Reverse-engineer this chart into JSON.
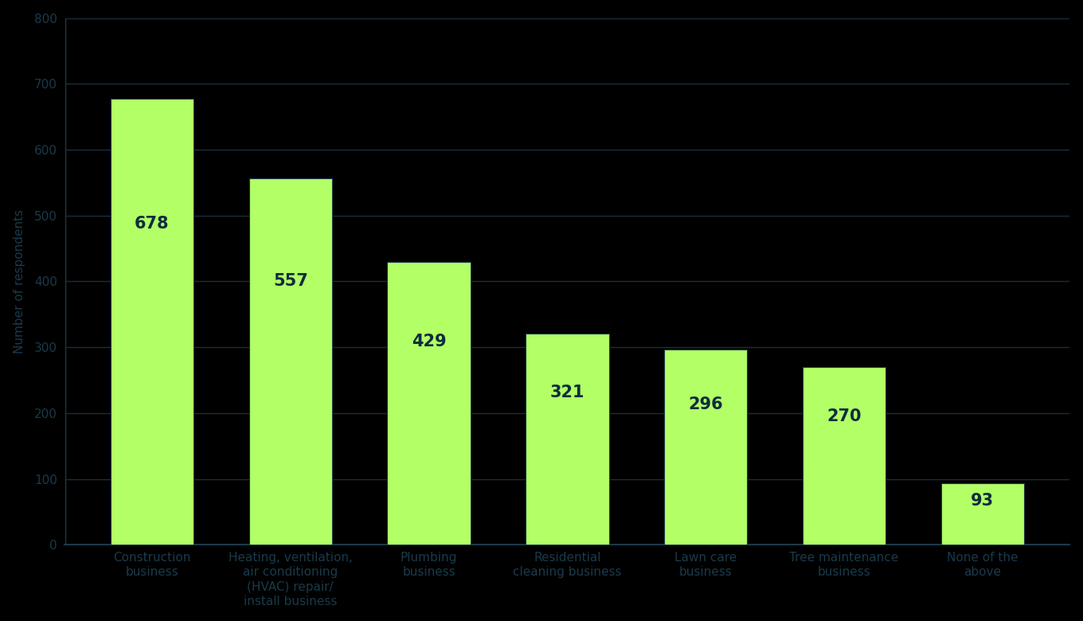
{
  "categories": [
    "Construction\nbusiness",
    "Heating, ventilation,\nair conditioning\n(HVAC) repair/\ninstall business",
    "Plumbing\nbusiness",
    "Residential\ncleaning business",
    "Lawn care\nbusiness",
    "Tree maintenance\nbusiness",
    "None of the\nabove"
  ],
  "values": [
    678,
    557,
    429,
    321,
    296,
    270,
    93
  ],
  "bar_color": "#b3ff66",
  "bar_edge_color": "#1a3a4a",
  "label_color": "#0d2d3d",
  "background_color": "#000000",
  "plot_bg_color": "#000000",
  "grid_color": "#1a2e3a",
  "tick_color": "#1a3a4a",
  "ylabel": "Number of respondents",
  "yticks": [
    0,
    100,
    200,
    300,
    400,
    500,
    600,
    700,
    800
  ],
  "ylim": [
    0,
    800
  ],
  "tick_fontsize": 11,
  "axis_label_fontsize": 11,
  "bar_label_fontsize": 15
}
